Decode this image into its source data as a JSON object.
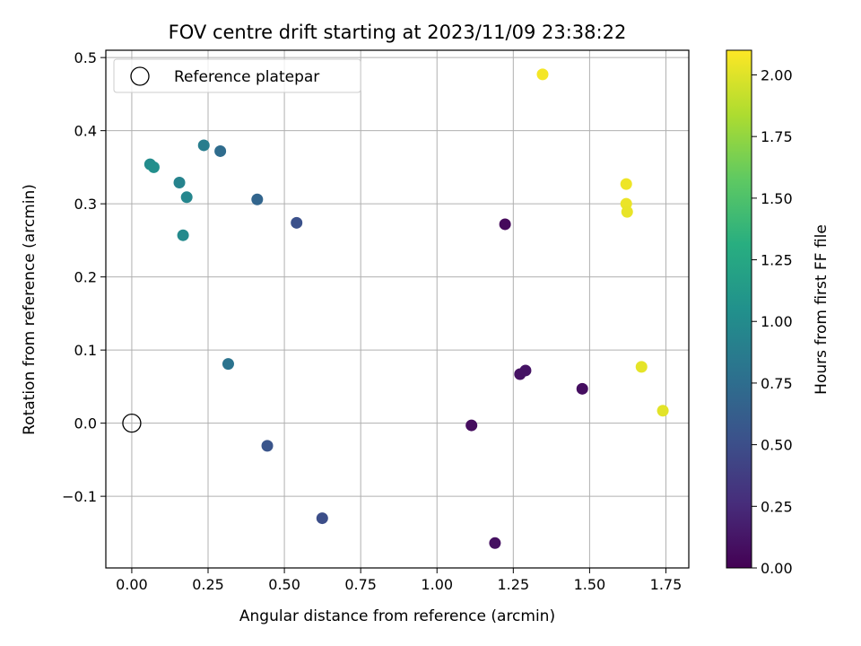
{
  "chart_data": {
    "type": "scatter",
    "title": "FOV centre drift starting at 2023/11/09 23:38:22",
    "xlabel": "Angular distance from reference (arcmin)",
    "ylabel": "Rotation from reference (arcmin)",
    "xlim": [
      -0.085,
      1.825
    ],
    "ylim": [
      -0.198,
      0.51
    ],
    "xticks": [
      0.0,
      0.25,
      0.5,
      0.75,
      1.0,
      1.25,
      1.5,
      1.75
    ],
    "xtick_labels": [
      "0.00",
      "0.25",
      "0.50",
      "0.75",
      "1.00",
      "1.25",
      "1.50",
      "1.75"
    ],
    "yticks": [
      -0.1,
      0.0,
      0.1,
      0.2,
      0.3,
      0.4,
      0.5
    ],
    "ytick_labels": [
      "−0.1",
      "0.0",
      "0.1",
      "0.2",
      "0.3",
      "0.4",
      "0.5"
    ],
    "grid": true,
    "legend": {
      "placement": "top-left",
      "entries": [
        {
          "label": "Reference platepar",
          "marker": "open-circle",
          "x": 0.0,
          "y": 0.0
        }
      ]
    },
    "colorbar": {
      "label": "Hours from first FF file",
      "colormap": "viridis",
      "range": [
        0.0,
        2.1
      ],
      "ticks": [
        0.0,
        0.25,
        0.5,
        0.75,
        1.0,
        1.25,
        1.5,
        1.75,
        2.0
      ],
      "tick_labels": [
        "0.00",
        "0.25",
        "0.50",
        "0.75",
        "1.00",
        "1.25",
        "1.50",
        "1.75",
        "2.00"
      ]
    },
    "points": [
      {
        "x": 1.223,
        "y": 0.272,
        "c": 0.05
      },
      {
        "x": 1.113,
        "y": -0.003,
        "c": 0.07
      },
      {
        "x": 1.19,
        "y": -0.164,
        "c": 0.09
      },
      {
        "x": 1.272,
        "y": 0.067,
        "c": 0.1
      },
      {
        "x": 1.29,
        "y": 0.072,
        "c": 0.11
      },
      {
        "x": 1.476,
        "y": 0.047,
        "c": 0.08
      },
      {
        "x": 0.54,
        "y": 0.274,
        "c": 0.52
      },
      {
        "x": 0.624,
        "y": -0.13,
        "c": 0.5
      },
      {
        "x": 0.444,
        "y": -0.031,
        "c": 0.55
      },
      {
        "x": 0.411,
        "y": 0.306,
        "c": 0.68
      },
      {
        "x": 0.29,
        "y": 0.372,
        "c": 0.74
      },
      {
        "x": 0.316,
        "y": 0.081,
        "c": 0.8
      },
      {
        "x": 0.236,
        "y": 0.38,
        "c": 0.88
      },
      {
        "x": 0.156,
        "y": 0.329,
        "c": 0.93
      },
      {
        "x": 0.18,
        "y": 0.309,
        "c": 0.96
      },
      {
        "x": 0.168,
        "y": 0.257,
        "c": 0.99
      },
      {
        "x": 0.06,
        "y": 0.354,
        "c": 1.01
      },
      {
        "x": 0.072,
        "y": 0.35,
        "c": 1.03
      },
      {
        "x": 1.346,
        "y": 0.477,
        "c": 2.07
      },
      {
        "x": 1.62,
        "y": 0.327,
        "c": 2.05
      },
      {
        "x": 1.62,
        "y": 0.3,
        "c": 2.04
      },
      {
        "x": 1.623,
        "y": 0.289,
        "c": 2.03
      },
      {
        "x": 1.67,
        "y": 0.077,
        "c": 2.02
      },
      {
        "x": 1.74,
        "y": 0.017,
        "c": 2.01
      }
    ]
  }
}
